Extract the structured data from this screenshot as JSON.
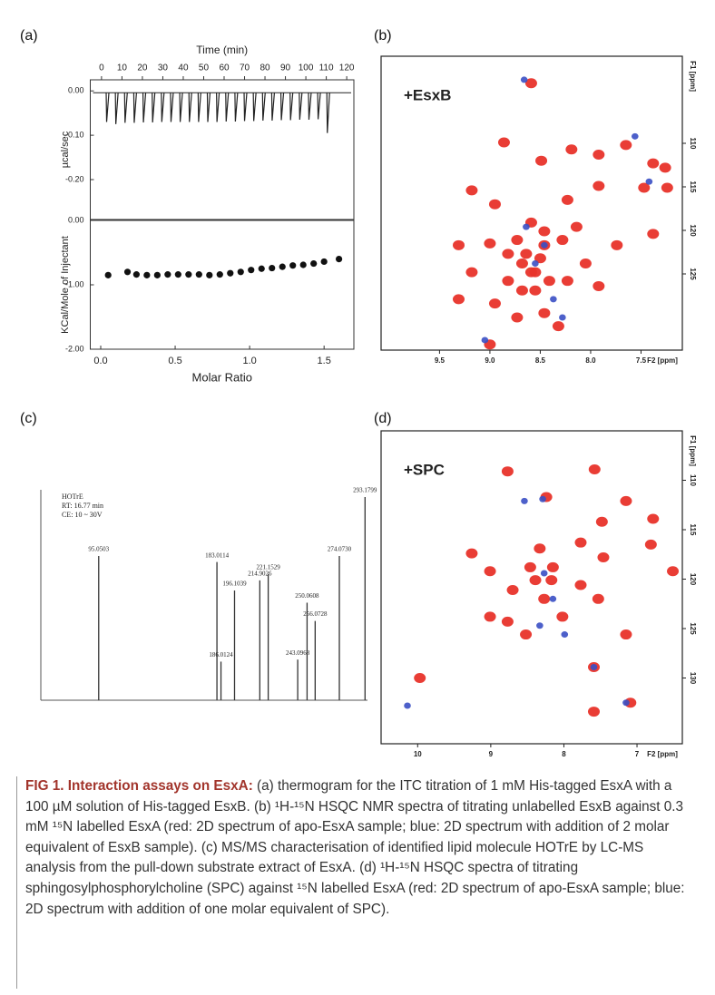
{
  "panel_labels": [
    "(a)",
    "(b)",
    "(c)",
    "(d)"
  ],
  "chart_data": [
    {
      "type": "itc",
      "top": {
        "xlabel": "Time (min)",
        "ylabel": "µcal/sec",
        "xlim": [
          -5.5,
          123.5
        ],
        "xticks": [
          0,
          10,
          20,
          30,
          40,
          50,
          60,
          70,
          80,
          90,
          100,
          110,
          120
        ],
        "ylim": [
          -0.29,
          0.025
        ],
        "yticks": [
          {
            "value": 0,
            "label": "0.00"
          },
          {
            "value": -0.1,
            "label": "-0.10"
          },
          {
            "value": -0.2,
            "label": "-0.20"
          }
        ],
        "x": [
          2.5,
          7,
          11.5,
          16,
          20.5,
          25,
          29.5,
          34,
          38.5,
          43,
          47.5,
          52,
          56.5,
          61,
          65.5,
          70,
          74.5,
          79,
          83.5,
          88,
          92.5,
          97,
          101.5,
          106,
          110.5
        ],
        "values": [
          -0.07,
          -0.075,
          -0.072,
          -0.072,
          -0.071,
          -0.071,
          -0.07,
          -0.07,
          -0.07,
          -0.07,
          -0.07,
          -0.07,
          -0.07,
          -0.069,
          -0.069,
          -0.068,
          -0.068,
          -0.067,
          -0.067,
          -0.066,
          -0.066,
          -0.065,
          -0.065,
          -0.064,
          -0.095
        ],
        "color": "#222222"
      },
      "bottom": {
        "xlabel": "Molar Ratio",
        "ylabel": "KCal/Mole of Injectant",
        "xlim": [
          -0.07,
          1.7
        ],
        "xticks": [
          {
            "value": 0,
            "label": "0.0"
          },
          0.5,
          {
            "value": 1,
            "label": "1.0"
          },
          1.5
        ],
        "ylim": [
          -2,
          0
        ],
        "yticks": [
          {
            "value": 0,
            "label": "0.00"
          },
          {
            "value": -1,
            "label": "-1.00"
          },
          {
            "value": -2,
            "label": "-2.00"
          }
        ],
        "x": [
          0.05,
          0.18,
          0.24,
          0.31,
          0.38,
          0.45,
          0.52,
          0.59,
          0.66,
          0.73,
          0.8,
          0.87,
          0.94,
          1.01,
          1.08,
          1.15,
          1.22,
          1.29,
          1.36,
          1.43,
          1.5,
          1.6
        ],
        "values": [
          -0.85,
          -0.8,
          -0.84,
          -0.85,
          -0.85,
          -0.84,
          -0.84,
          -0.84,
          -0.84,
          -0.85,
          -0.84,
          -0.82,
          -0.8,
          -0.77,
          -0.75,
          -0.74,
          -0.72,
          -0.7,
          -0.69,
          -0.67,
          -0.64,
          -0.6
        ],
        "color": "#111111"
      }
    },
    {
      "type": "nmr",
      "annotation": "+EsxB",
      "xlabel": "F2 [ppm]",
      "ylabel": "F1 [ppm]",
      "xlim": [
        10.08,
        7.09
      ],
      "xticks": [
        9.5,
        {
          "value": 9,
          "label": "9.0"
        },
        8.5,
        {
          "value": 8,
          "label": "8.0"
        },
        7.5
      ],
      "ylim": [
        133.75,
        100
      ],
      "yticks": [
        110,
        115,
        120,
        125
      ],
      "series": [
        {
          "color": "#e8332a",
          "x": [
            8.59,
            8.86,
            8.49,
            8.19,
            7.92,
            7.65,
            7.38,
            7.26,
            7.47,
            7.24,
            7.92,
            8.23,
            9.18,
            8.95,
            8.59,
            8.46,
            9.31,
            9.0,
            8.82,
            8.68,
            8.55,
            8.46,
            8.28,
            8.14,
            8.05,
            8.82,
            8.55,
            9.18,
            8.95,
            8.73,
            8.46,
            8.23,
            7.92,
            7.74,
            7.38,
            9.0,
            8.32,
            9.31,
            8.73,
            8.64,
            8.5,
            8.41,
            8.68,
            8.59
          ],
          "values": [
            103.1,
            109.9,
            112.0,
            110.7,
            111.3,
            110.2,
            112.3,
            112.8,
            115.1,
            115.1,
            114.9,
            116.5,
            115.4,
            117.0,
            119.1,
            120.1,
            121.7,
            121.5,
            122.7,
            123.8,
            124.8,
            121.7,
            121.1,
            119.6,
            123.8,
            125.8,
            126.9,
            124.8,
            128.4,
            130.0,
            129.5,
            125.8,
            126.4,
            121.7,
            120.4,
            133.1,
            131.0,
            127.9,
            121.1,
            122.7,
            123.2,
            125.8,
            126.9,
            124.8
          ]
        },
        {
          "color": "#3a4fc4",
          "x": [
            8.66,
            8.64,
            8.55,
            8.37,
            7.56,
            7.42,
            9.05,
            8.28,
            8.46
          ],
          "values": [
            102.7,
            119.6,
            123.8,
            127.9,
            109.2,
            114.4,
            132.6,
            130.0,
            121.7
          ]
        }
      ]
    },
    {
      "type": "ms",
      "legend_text": [
        "HOTrE",
        "RT: 16.77 min",
        "CE: 10 ~ 30V"
      ],
      "xlim": [
        52,
        295
      ],
      "ylim": [
        0,
        100
      ],
      "color": "#333333",
      "x": [
        95.0503,
        183.0114,
        186.0124,
        196.1039,
        214.9026,
        221.1529,
        243.0968,
        250.0608,
        256.0728,
        274.073,
        293.1799
      ],
      "values": [
        71,
        68,
        19,
        54,
        59,
        62,
        20,
        48,
        39,
        71,
        100
      ],
      "peak_labels": [
        "95.0503",
        "183.0114",
        "186.0124",
        "196.1039",
        "214.9026",
        "221.1529",
        "243.0968",
        "250.0608",
        "256.0728",
        "274.0730",
        "293.1799"
      ]
    },
    {
      "type": "nmr",
      "annotation": "+SPC",
      "xlabel": "F2 [ppm]",
      "ylabel": "F1 [ppm]",
      "xlim": [
        10.5,
        6.38
      ],
      "xticks": [
        10,
        9,
        8,
        7
      ],
      "ylim": [
        136.65,
        105
      ],
      "yticks": [
        110,
        115,
        120,
        125,
        130
      ],
      "series": [
        {
          "color": "#e8332a",
          "x": [
            9.97,
            8.77,
            8.24,
            7.58,
            7.15,
            7.48,
            6.78,
            6.81,
            6.51,
            9.26,
            9.01,
            8.7,
            8.39,
            8.15,
            8.27,
            8.02,
            8.52,
            8.77,
            7.77,
            7.46,
            7.53,
            7.15,
            7.59,
            7.09,
            7.59,
            7.77,
            8.33,
            9.01,
            8.17,
            8.46
          ],
          "values": [
            130.0,
            109.1,
            111.7,
            108.9,
            112.1,
            114.2,
            113.9,
            116.5,
            119.2,
            117.4,
            119.2,
            121.1,
            120.1,
            118.8,
            122.0,
            123.8,
            125.6,
            124.3,
            120.6,
            117.8,
            122.0,
            125.6,
            128.9,
            132.5,
            133.4,
            116.3,
            116.9,
            123.8,
            120.1,
            118.8
          ]
        },
        {
          "color": "#3a4fc4",
          "x": [
            8.54,
            8.29,
            8.15,
            8.33,
            7.99,
            7.15,
            10.14,
            7.59,
            8.27
          ],
          "values": [
            112.1,
            111.9,
            122.0,
            124.7,
            125.6,
            132.5,
            132.8,
            128.9,
            119.4
          ]
        }
      ]
    }
  ],
  "caption": {
    "label": "FIG 1. Interaction assays on EsxA:",
    "text": "(a) thermogram for the ITC titration of 1 mM His-tagged EsxA with a 100 µM solution of His-tagged EsxB. (b) ¹H-¹⁵N HSQC NMR spectra of titrating unlabelled EsxB against 0.3 mM ¹⁵N labelled EsxA (red: 2D spectrum of apo-EsxA sample; blue: 2D spectrum with addition of 2 molar equivalent of EsxB sample). (c) MS/MS characterisation of identified lipid molecule HOTrE by LC-MS analysis from the pull-down substrate extract of EsxA. (d) ¹H-¹⁵N HSQC spectra of titrating sphingosylphosphorylcholine (SPC) against ¹⁵N labelled EsxA (red: 2D spectrum of apo-EsxA sample; blue: 2D spectrum with addition of one molar equivalent of SPC)."
  }
}
